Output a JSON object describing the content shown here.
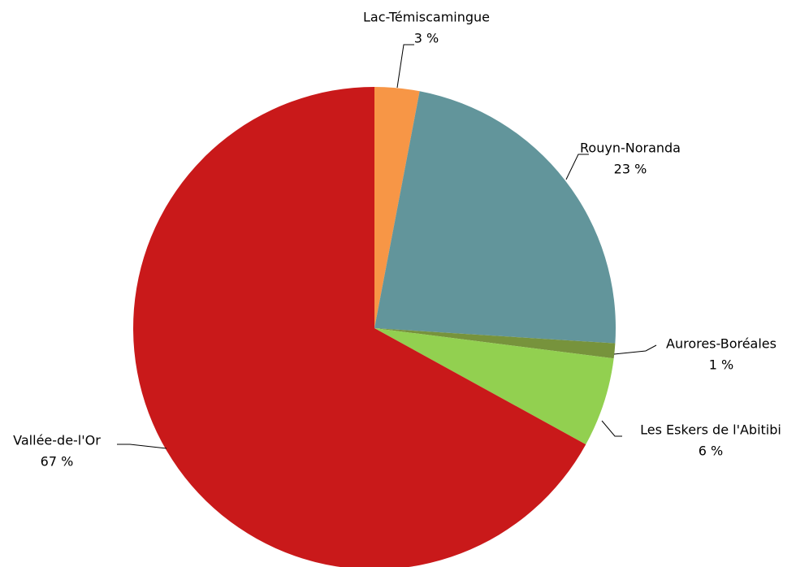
{
  "chart_data": {
    "type": "pie",
    "categories": [
      "Lac-Témiscamingue",
      "Rouyn-Noranda",
      "Aurores-Boréales",
      "Les Eskers de l'Abitibi",
      "Vallée-de-l'Or"
    ],
    "values": [
      3,
      23,
      1,
      6,
      67
    ],
    "value_labels": [
      "3 %",
      "23 %",
      "1 %",
      "6 %",
      "67 %"
    ],
    "colors": [
      "#f79646",
      "#62959b",
      "#77933c",
      "#92d050",
      "#c9191a"
    ]
  }
}
